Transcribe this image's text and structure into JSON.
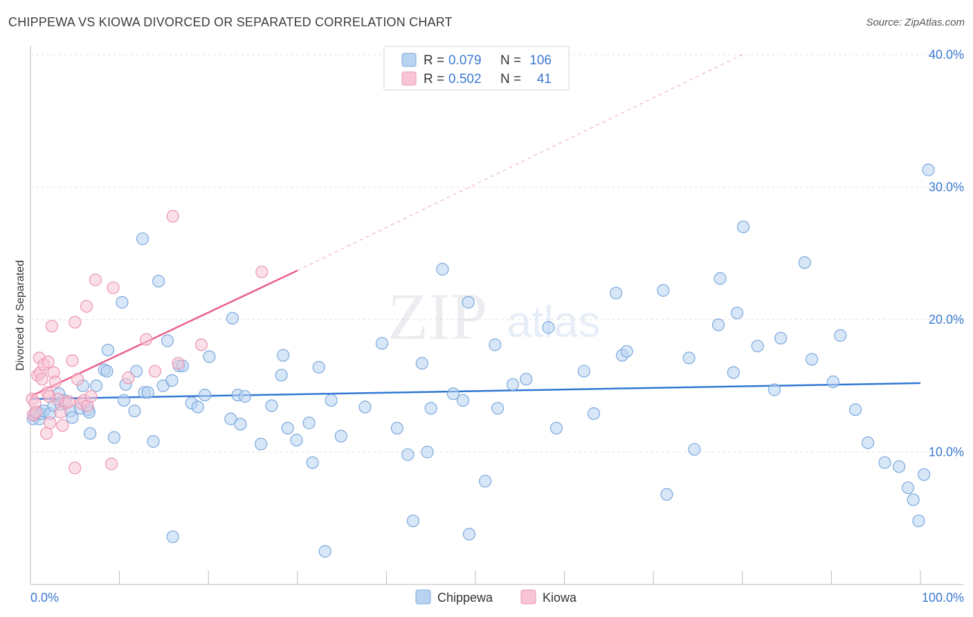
{
  "header": {
    "title": "CHIPPEWA VS KIOWA DIVORCED OR SEPARATED CORRELATION CHART",
    "source": "Source: ZipAtlas.com"
  },
  "watermark": {
    "zip": "ZIP",
    "atlas": "atlas"
  },
  "legend_stats": {
    "rows": [
      {
        "r_label": "R =",
        "r_value": "0.079",
        "n_label": "N =",
        "n_value": "106"
      },
      {
        "r_label": "R =",
        "r_value": "0.502",
        "n_label": "N =",
        "n_value": "41"
      }
    ]
  },
  "colors": {
    "chippewa_fill": "#b8d3f2",
    "chippewa_stroke": "#7aa8dc",
    "chippewa_line": "#2f76d2",
    "kiowa_fill": "#f8c5d5",
    "kiowa_stroke": "#eb94b0",
    "kiowa_line": "#e8608c",
    "accent_text": "#3a78d1"
  },
  "chart_data": {
    "type": "scatter",
    "title": "CHIPPEWA VS KIOWA DIVORCED OR SEPARATED CORRELATION CHART",
    "xlabel": "",
    "ylabel": "Divorced or Separated",
    "xlim": [
      0,
      100
    ],
    "ylim": [
      0,
      40
    ],
    "x_tick_labels": [
      "0.0%",
      "100.0%"
    ],
    "y_ticks": [
      10,
      20,
      30,
      40
    ],
    "y_tick_labels": [
      "10.0%",
      "20.0%",
      "30.0%",
      "40.0%"
    ],
    "grid": true,
    "legend": {
      "placement": "bottom-center",
      "entries": [
        "Chippewa",
        "Kiowa"
      ]
    },
    "series": [
      {
        "name": "Chippewa",
        "r": 0.079,
        "n": 106,
        "trend": {
          "x": [
            0,
            100
          ],
          "y": [
            14.0,
            15.2
          ]
        },
        "points": [
          [
            0.3,
            12.5
          ],
          [
            0.5,
            12.8
          ],
          [
            0.8,
            13.0
          ],
          [
            1.0,
            12.5
          ],
          [
            1.2,
            12.9
          ],
          [
            1.5,
            13.1
          ],
          [
            2.2,
            12.9
          ],
          [
            2.6,
            13.5
          ],
          [
            3.4,
            13.6
          ],
          [
            3.2,
            14.4
          ],
          [
            3.8,
            13.9
          ],
          [
            4.5,
            13.1
          ],
          [
            4.7,
            12.6
          ],
          [
            5.6,
            13.3
          ],
          [
            5.9,
            15.0
          ],
          [
            6.5,
            13.2
          ],
          [
            6.7,
            11.4
          ],
          [
            7.4,
            15.0
          ],
          [
            8.3,
            16.2
          ],
          [
            8.6,
            16.1
          ],
          [
            8.7,
            17.7
          ],
          [
            9.4,
            11.1
          ],
          [
            10.3,
            21.3
          ],
          [
            10.5,
            13.9
          ],
          [
            10.7,
            15.1
          ],
          [
            11.7,
            13.1
          ],
          [
            11.9,
            16.1
          ],
          [
            12.6,
            26.1
          ],
          [
            12.8,
            14.5
          ],
          [
            13.2,
            14.5
          ],
          [
            13.8,
            10.8
          ],
          [
            14.4,
            22.9
          ],
          [
            14.9,
            15.0
          ],
          [
            15.4,
            18.4
          ],
          [
            15.9,
            15.4
          ],
          [
            16.0,
            3.6
          ],
          [
            16.7,
            16.5
          ],
          [
            17.1,
            16.5
          ],
          [
            18.1,
            13.7
          ],
          [
            18.8,
            13.4
          ],
          [
            19.6,
            14.3
          ],
          [
            20.1,
            17.2
          ],
          [
            22.5,
            12.5
          ],
          [
            22.7,
            20.1
          ],
          [
            23.3,
            14.3
          ],
          [
            23.6,
            12.1
          ],
          [
            24.1,
            14.2
          ],
          [
            25.9,
            10.6
          ],
          [
            27.1,
            13.5
          ],
          [
            28.2,
            15.8
          ],
          [
            28.4,
            17.3
          ],
          [
            28.9,
            11.8
          ],
          [
            29.9,
            10.9
          ],
          [
            31.3,
            12.2
          ],
          [
            31.7,
            9.2
          ],
          [
            32.4,
            16.4
          ],
          [
            33.1,
            2.5
          ],
          [
            33.8,
            13.9
          ],
          [
            34.9,
            11.2
          ],
          [
            37.6,
            13.4
          ],
          [
            39.5,
            18.2
          ],
          [
            41.2,
            11.8
          ],
          [
            42.4,
            9.8
          ],
          [
            43.0,
            4.8
          ],
          [
            44.0,
            16.7
          ],
          [
            44.6,
            10.0
          ],
          [
            45.0,
            13.3
          ],
          [
            46.3,
            23.8
          ],
          [
            47.5,
            14.4
          ],
          [
            48.6,
            13.9
          ],
          [
            49.2,
            21.3
          ],
          [
            49.3,
            3.8
          ],
          [
            51.1,
            7.8
          ],
          [
            52.2,
            18.1
          ],
          [
            52.5,
            13.3
          ],
          [
            54.2,
            15.1
          ],
          [
            55.7,
            15.5
          ],
          [
            58.2,
            19.4
          ],
          [
            59.1,
            11.8
          ],
          [
            62.2,
            16.1
          ],
          [
            63.3,
            12.9
          ],
          [
            65.8,
            22.0
          ],
          [
            66.5,
            17.3
          ],
          [
            67.0,
            17.6
          ],
          [
            71.1,
            22.2
          ],
          [
            71.5,
            6.8
          ],
          [
            74.0,
            17.1
          ],
          [
            74.6,
            10.2
          ],
          [
            77.3,
            19.6
          ],
          [
            77.5,
            23.1
          ],
          [
            79.0,
            16.0
          ],
          [
            79.4,
            20.5
          ],
          [
            80.1,
            27.0
          ],
          [
            81.7,
            18.0
          ],
          [
            83.6,
            14.7
          ],
          [
            84.3,
            18.6
          ],
          [
            87.0,
            24.3
          ],
          [
            87.8,
            17.0
          ],
          [
            90.2,
            15.3
          ],
          [
            91.0,
            18.8
          ],
          [
            92.7,
            13.2
          ],
          [
            94.1,
            10.7
          ],
          [
            96.0,
            9.2
          ],
          [
            97.6,
            8.9
          ],
          [
            98.6,
            7.3
          ],
          [
            99.2,
            6.4
          ],
          [
            99.8,
            4.8
          ],
          [
            100.4,
            8.3
          ],
          [
            100.9,
            31.3
          ],
          [
            6.6,
            13.0
          ]
        ]
      },
      {
        "name": "Kiowa",
        "r": 0.502,
        "n": 41,
        "trend": {
          "x": [
            0,
            30
          ],
          "y": [
            14.2,
            23.7
          ]
        },
        "trend_extension": {
          "x": [
            30,
            80
          ],
          "y": [
            23.7,
            40
          ]
        },
        "points": [
          [
            0.2,
            14.0
          ],
          [
            0.3,
            12.8
          ],
          [
            0.5,
            13.7
          ],
          [
            0.6,
            13.0
          ],
          [
            0.8,
            15.8
          ],
          [
            1.0,
            17.1
          ],
          [
            1.1,
            16.0
          ],
          [
            1.3,
            15.5
          ],
          [
            1.5,
            16.6
          ],
          [
            1.8,
            11.4
          ],
          [
            1.9,
            14.5
          ],
          [
            2.0,
            16.8
          ],
          [
            2.2,
            12.2
          ],
          [
            2.4,
            19.5
          ],
          [
            2.6,
            16.0
          ],
          [
            2.8,
            15.3
          ],
          [
            3.1,
            14.0
          ],
          [
            3.4,
            13.0
          ],
          [
            3.6,
            12.0
          ],
          [
            4.0,
            13.7
          ],
          [
            4.3,
            13.8
          ],
          [
            4.7,
            16.9
          ],
          [
            5.0,
            8.8
          ],
          [
            5.0,
            19.8
          ],
          [
            5.3,
            15.5
          ],
          [
            5.7,
            13.7
          ],
          [
            6.0,
            13.9
          ],
          [
            6.3,
            21.0
          ],
          [
            6.4,
            13.5
          ],
          [
            6.8,
            14.2
          ],
          [
            7.3,
            23.0
          ],
          [
            9.1,
            9.1
          ],
          [
            9.3,
            22.4
          ],
          [
            11.0,
            15.6
          ],
          [
            13.0,
            18.5
          ],
          [
            14.0,
            16.1
          ],
          [
            16.0,
            27.8
          ],
          [
            16.6,
            16.7
          ],
          [
            19.2,
            18.1
          ],
          [
            26.0,
            23.6
          ],
          [
            2.1,
            14.2
          ]
        ]
      }
    ]
  }
}
